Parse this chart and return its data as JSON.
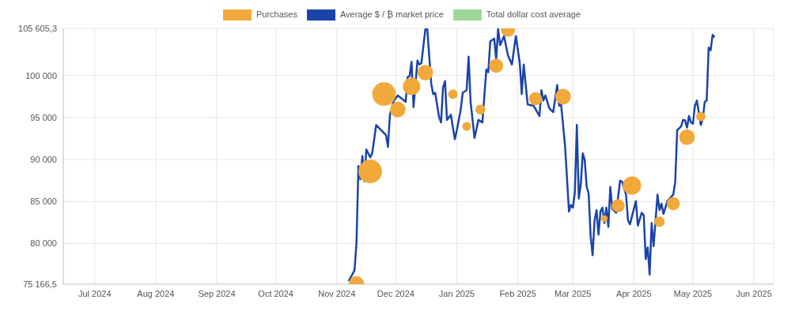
{
  "chart_data": {
    "type": "line",
    "legend": "top",
    "grid": true,
    "xlim": [
      "2024-06-15",
      "2025-06-11"
    ],
    "xticks": [
      {
        "value": "2024-07-01",
        "label": "Jul 2024"
      },
      {
        "value": "2024-08-01",
        "label": "Aug 2024"
      },
      {
        "value": "2024-09-01",
        "label": "Sep 2024"
      },
      {
        "value": "2024-10-01",
        "label": "Oct 2024"
      },
      {
        "value": "2024-11-01",
        "label": "Nov 2024"
      },
      {
        "value": "2024-12-01",
        "label": "Dec 2024"
      },
      {
        "value": "2025-01-01",
        "label": "Jan 2025"
      },
      {
        "value": "2025-02-01",
        "label": "Feb 2025"
      },
      {
        "value": "2025-03-01",
        "label": "Mar 2025"
      },
      {
        "value": "2025-04-01",
        "label": "Apr 2025"
      },
      {
        "value": "2025-05-01",
        "label": "May 2025"
      },
      {
        "value": "2025-06-01",
        "label": "Jun 2025"
      }
    ],
    "ylim": [
      75166.5,
      105605.3
    ],
    "yticks": [
      {
        "value": 75166.5,
        "label": "75 166,5"
      },
      {
        "value": 80000,
        "label": "80 000"
      },
      {
        "value": 85000,
        "label": "85 000"
      },
      {
        "value": 90000,
        "label": "90 000"
      },
      {
        "value": 95000,
        "label": "95 000"
      },
      {
        "value": 100000,
        "label": "100 000"
      },
      {
        "value": 105605.3,
        "label": "105 605,3"
      }
    ],
    "series": [
      {
        "name": "Purchases",
        "type": "bubble",
        "color": "#f2a93b",
        "x": [
          "2024-11-11",
          "2024-11-18",
          "2024-11-25",
          "2024-12-02",
          "2024-12-09",
          "2024-12-16",
          "2024-12-30",
          "2025-01-06",
          "2025-01-13",
          "2025-01-21",
          "2025-01-27",
          "2025-02-10",
          "2025-02-24",
          "2025-03-17",
          "2025-03-24",
          "2025-03-31",
          "2025-04-14",
          "2025-04-21",
          "2025-04-28",
          "2025-05-05"
        ],
        "values": [
          75200,
          88580,
          97790,
          95950,
          98710,
          100340,
          97790,
          93950,
          95950,
          101170,
          105460,
          97240,
          97480,
          82970,
          84500,
          86900,
          82600,
          84740,
          92660,
          95120
        ],
        "sizes": [
          0.44,
          1,
          1,
          0.44,
          0.54,
          0.44,
          0.16,
          0.14,
          0.18,
          0.36,
          0.36,
          0.31,
          0.44,
          0.08,
          0.31,
          0.61,
          0.2,
          0.31,
          0.44,
          0.16
        ]
      },
      {
        "name": "Average $ / ₿ market price",
        "color": "#1a44a8",
        "marker": "none",
        "x": [
          "2024-11-07",
          "2024-11-10",
          "2024-11-11",
          "2024-11-12",
          "2024-11-13",
          "2024-11-14",
          "2024-11-15",
          "2024-11-16",
          "2024-11-18",
          "2024-11-19",
          "2024-11-21",
          "2024-11-26",
          "2024-11-27",
          "2024-11-28",
          "2024-11-30",
          "2024-12-02",
          "2024-12-06",
          "2024-12-07",
          "2024-12-08",
          "2024-12-09",
          "2024-12-10",
          "2024-12-12",
          "2024-12-13",
          "2024-12-14",
          "2024-12-16",
          "2024-12-17",
          "2024-12-19",
          "2024-12-20",
          "2024-12-21",
          "2024-12-23",
          "2024-12-24",
          "2024-12-25",
          "2024-12-26",
          "2024-12-27",
          "2024-12-29",
          "2024-12-30",
          "2024-12-31",
          "2025-01-01",
          "2025-01-03",
          "2025-01-04",
          "2025-01-06",
          "2025-01-07",
          "2025-01-08",
          "2025-01-10",
          "2025-01-12",
          "2025-01-14",
          "2025-01-16",
          "2025-01-17",
          "2025-01-18",
          "2025-01-20",
          "2025-01-21",
          "2025-01-22",
          "2025-01-23",
          "2025-01-25",
          "2025-01-27",
          "2025-01-29",
          "2025-01-31",
          "2025-02-02",
          "2025-02-03",
          "2025-02-04",
          "2025-02-06",
          "2025-02-09",
          "2025-02-12",
          "2025-02-13",
          "2025-02-14",
          "2025-02-15",
          "2025-02-17",
          "2025-02-19",
          "2025-02-21",
          "2025-02-22",
          "2025-02-23",
          "2025-02-25",
          "2025-02-27",
          "2025-02-28",
          "2025-03-01",
          "2025-03-02",
          "2025-03-03",
          "2025-03-04",
          "2025-03-05",
          "2025-03-06",
          "2025-03-07",
          "2025-03-08",
          "2025-03-09",
          "2025-03-10",
          "2025-03-11",
          "2025-03-12",
          "2025-03-13",
          "2025-03-14",
          "2025-03-15",
          "2025-03-16",
          "2025-03-17",
          "2025-03-18",
          "2025-03-19",
          "2025-03-20",
          "2025-03-21",
          "2025-03-23",
          "2025-03-25",
          "2025-03-26",
          "2025-03-28",
          "2025-03-29",
          "2025-03-30",
          "2025-04-02",
          "2025-04-03",
          "2025-04-05",
          "2025-04-06",
          "2025-04-07",
          "2025-04-08",
          "2025-04-09",
          "2025-04-10",
          "2025-04-11",
          "2025-04-13",
          "2025-04-14",
          "2025-04-15",
          "2025-04-16",
          "2025-04-18",
          "2025-04-21",
          "2025-04-22",
          "2025-04-23",
          "2025-04-25",
          "2025-04-26",
          "2025-04-27",
          "2025-04-28",
          "2025-04-29",
          "2025-04-30",
          "2025-05-01",
          "2025-05-02",
          "2025-05-03",
          "2025-05-05",
          "2025-05-06",
          "2025-05-07",
          "2025-05-08",
          "2025-05-09",
          "2025-05-10",
          "2025-05-11",
          "2025-05-12"
        ],
        "values": [
          75530,
          76800,
          80000,
          89230,
          87660,
          90420,
          87400,
          91190,
          90270,
          90730,
          94100,
          92910,
          91500,
          95330,
          97020,
          97630,
          96870,
          99790,
          99940,
          101630,
          96250,
          101780,
          101310,
          101470,
          105500,
          105500,
          99010,
          97790,
          97950,
          95030,
          94410,
          98560,
          99330,
          94720,
          95330,
          93800,
          92420,
          93490,
          95950,
          97950,
          98250,
          102240,
          96870,
          92570,
          94720,
          94410,
          100710,
          100400,
          104080,
          104390,
          101930,
          105550,
          103620,
          104700,
          102390,
          101310,
          104700,
          101470,
          97790,
          101310,
          96560,
          96400,
          95180,
          98250,
          97020,
          97630,
          96100,
          95640,
          98870,
          96400,
          96560,
          91650,
          83820,
          84590,
          84280,
          86120,
          94110,
          85360,
          87040,
          90730,
          89960,
          86740,
          85980,
          80910,
          78610,
          82750,
          83980,
          81070,
          83820,
          84280,
          82440,
          84280,
          81980,
          86740,
          84130,
          83670,
          87500,
          87350,
          85820,
          82750,
          82290,
          85050,
          82140,
          83670,
          83360,
          78150,
          79530,
          76310,
          82440,
          79680,
          85820,
          83980,
          84740,
          83520,
          85050,
          85820,
          87350,
          93490,
          93950,
          94720,
          94660,
          93800,
          95180,
          94410,
          94260,
          96400,
          97020,
          94110,
          94870,
          96870,
          97020,
          103320,
          103010,
          104850,
          104540
        ]
      },
      {
        "name": "Total dollar cost average",
        "type": "area",
        "color": "#9dd89a"
      }
    ]
  }
}
